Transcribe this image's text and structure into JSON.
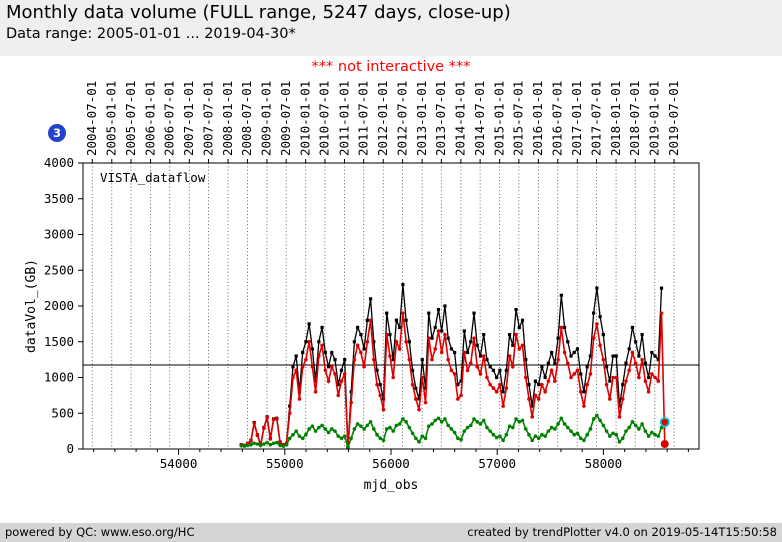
{
  "header": {
    "title": "Monthly data volume (FULL range, 5247 days, close-up)",
    "subtitle": "Data range: 2005-01-01 ... 2019-04-30*"
  },
  "badge": {
    "value": "3",
    "color": "#2244cc"
  },
  "figure": {
    "notice": "*** not interactive ***",
    "notice_color": "#ff0000"
  },
  "footer": {
    "left": "powered by QC: www.eso.org/HC",
    "right": "created by trendPlotter v4.0 on 2019-05-14T15:50:58"
  },
  "chart_data": {
    "type": "line",
    "annotation": "VISTA_dataflow",
    "xlabel": "mjd_obs",
    "ylabel": "dataVol_(GB)",
    "xlim": [
      53100,
      58900
    ],
    "ylim": [
      0,
      4000
    ],
    "x_ticks": [
      54000,
      55000,
      56000,
      57000,
      58000
    ],
    "x_minor_tick_step": 200,
    "y_ticks": [
      0,
      500,
      1000,
      1500,
      2000,
      2500,
      3000,
      3500,
      4000
    ],
    "top_date_ticks": [
      "2004-07-01",
      "2005-01-01",
      "2005-07-01",
      "2006-01-01",
      "2006-07-01",
      "2007-01-01",
      "2007-07-01",
      "2008-01-01",
      "2008-07-01",
      "2009-01-01",
      "2009-07-01",
      "2010-01-01",
      "2010-07-01",
      "2011-01-01",
      "2011-07-01",
      "2012-01-01",
      "2012-07-01",
      "2013-01-01",
      "2013-07-01",
      "2014-01-01",
      "2014-07-01",
      "2015-01-01",
      "2015-07-01",
      "2016-01-01",
      "2016-07-01",
      "2017-01-01",
      "2017-07-01",
      "2018-01-01",
      "2018-07-01",
      "2019-01-01",
      "2019-07-01"
    ],
    "reference_line_y": 1175,
    "mjd_start": 54590,
    "mjd_step_days": 30.44,
    "series": [
      {
        "name": "black",
        "color": "#000000",
        "marker": "square",
        "line_width": 1.3,
        "values": [
          60,
          50,
          80,
          120,
          370,
          200,
          60,
          300,
          450,
          150,
          420,
          430,
          100,
          60,
          80,
          600,
          1150,
          1300,
          800,
          1350,
          1500,
          1750,
          1400,
          950,
          1500,
          1700,
          1350,
          1150,
          1350,
          1250,
          900,
          1100,
          1250,
          30,
          800,
          1500,
          1700,
          1600,
          1400,
          1800,
          2100,
          1500,
          1100,
          900,
          700,
          1900,
          1600,
          1250,
          1800,
          1700,
          2300,
          1800,
          1500,
          1100,
          850,
          700,
          1250,
          850,
          1900,
          1550,
          1700,
          1950,
          1650,
          2000,
          1550,
          1400,
          1350,
          900,
          950,
          1650,
          1350,
          1500,
          1900,
          1450,
          1300,
          1600,
          1250,
          1150,
          1100,
          1000,
          1100,
          800,
          1100,
          1600,
          1450,
          1950,
          1700,
          1800,
          1250,
          900,
          600,
          950,
          900,
          1150,
          1000,
          1200,
          1350,
          1200,
          1550,
          2150,
          1700,
          1500,
          1300,
          1350,
          1400,
          1050,
          800,
          1150,
          1300,
          1900,
          2250,
          1850,
          1600,
          1150,
          950,
          1300,
          1300,
          600,
          900,
          1200,
          1400,
          1700,
          1500,
          1300,
          1600,
          1200,
          1000,
          1350,
          1300,
          1250,
          2250,
          null
        ]
      },
      {
        "name": "red",
        "color": "#dd0000",
        "marker": "circle",
        "line_width": 1.6,
        "values": [
          55,
          45,
          75,
          110,
          360,
          190,
          55,
          290,
          440,
          140,
          410,
          420,
          90,
          55,
          75,
          500,
          1000,
          1100,
          700,
          1150,
          1250,
          1500,
          1150,
          800,
          1300,
          1450,
          1100,
          950,
          1150,
          1050,
          750,
          950,
          1050,
          25,
          650,
          1250,
          1450,
          1350,
          1150,
          1500,
          1800,
          1250,
          900,
          750,
          550,
          1600,
          1300,
          1000,
          1500,
          1400,
          1900,
          1500,
          1250,
          900,
          700,
          550,
          1000,
          650,
          1550,
          1250,
          1400,
          1650,
          1350,
          1600,
          1250,
          1100,
          1050,
          700,
          750,
          1350,
          1100,
          1200,
          1550,
          1150,
          1050,
          1300,
          1000,
          900,
          850,
          800,
          900,
          600,
          850,
          1300,
          1150,
          1600,
          1400,
          1450,
          1000,
          700,
          450,
          750,
          700,
          900,
          800,
          950,
          1100,
          950,
          1250,
          1700,
          1350,
          1200,
          1000,
          1050,
          1100,
          800,
          600,
          900,
          1050,
          1550,
          1750,
          1450,
          1250,
          900,
          700,
          1000,
          1000,
          450,
          700,
          950,
          1100,
          1350,
          1200,
          1000,
          1250,
          950,
          800,
          1050,
          1000,
          950,
          1900,
          70
        ]
      },
      {
        "name": "green",
        "color": "#008000",
        "marker": "circle",
        "line_width": 1.6,
        "values": [
          45,
          40,
          50,
          60,
          80,
          70,
          50,
          70,
          90,
          60,
          80,
          90,
          50,
          40,
          60,
          150,
          200,
          250,
          180,
          150,
          200,
          280,
          320,
          250,
          300,
          330,
          280,
          230,
          280,
          250,
          180,
          150,
          180,
          20,
          150,
          280,
          350,
          320,
          280,
          330,
          380,
          280,
          200,
          150,
          120,
          280,
          300,
          250,
          330,
          350,
          420,
          380,
          300,
          220,
          150,
          100,
          180,
          150,
          320,
          350,
          400,
          430,
          380,
          420,
          330,
          280,
          230,
          150,
          130,
          250,
          300,
          330,
          420,
          380,
          350,
          400,
          300,
          250,
          200,
          160,
          180,
          120,
          200,
          320,
          300,
          420,
          380,
          400,
          280,
          200,
          120,
          180,
          150,
          200,
          180,
          250,
          300,
          280,
          350,
          430,
          350,
          300,
          250,
          200,
          220,
          150,
          120,
          200,
          280,
          420,
          470,
          400,
          330,
          250,
          180,
          220,
          200,
          100,
          150,
          250,
          300,
          380,
          330,
          280,
          350,
          250,
          180,
          230,
          200,
          180,
          300,
          375
        ]
      },
      {
        "name": "end_markers_meta",
        "color": "",
        "marker": "none",
        "line_width": 0,
        "values": []
      }
    ],
    "end_markers": [
      {
        "series": "red",
        "radius": 4,
        "fill": "#dd0000"
      },
      {
        "series": "green",
        "radius": 3.2,
        "fill": "#dd0000",
        "halo": "#00c8d7",
        "halo_radius": 5
      }
    ]
  }
}
